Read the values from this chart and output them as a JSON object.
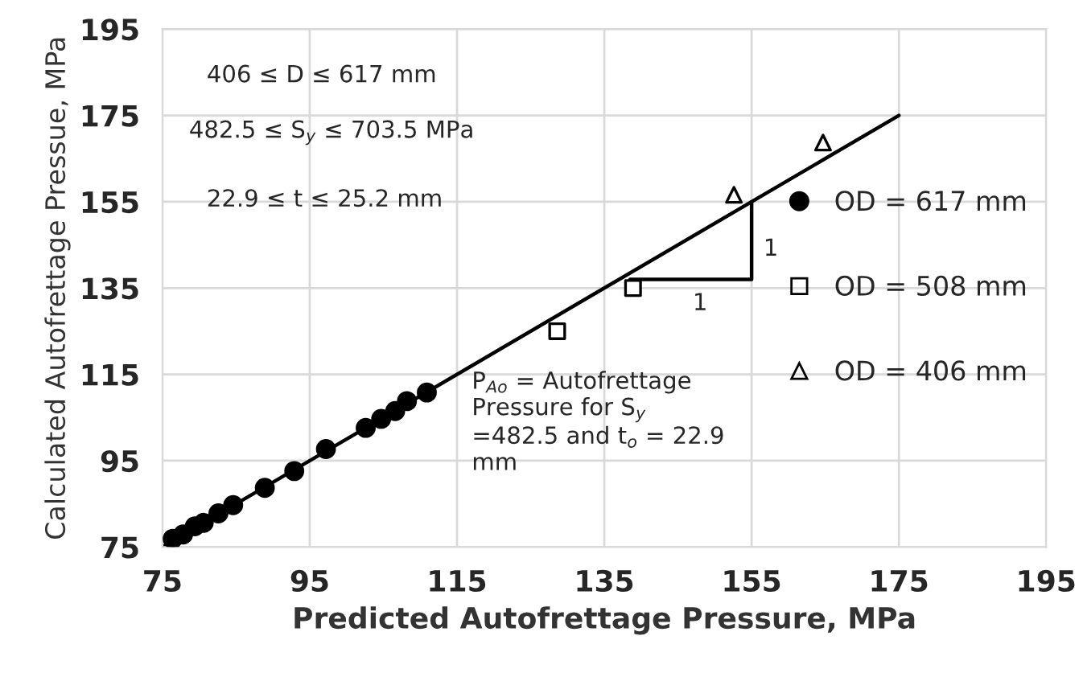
{
  "chart_data": {
    "type": "scatter",
    "xlabel": "Predicted Autofrettage Pressure, MPa",
    "ylabel": "Calculated Autofrettage Pressue, MPa",
    "xlim": [
      75,
      195
    ],
    "xticks": [
      75,
      95,
      115,
      135,
      155,
      175,
      195
    ],
    "ylim": [
      75,
      195
    ],
    "yticks": [
      75,
      95,
      115,
      135,
      155,
      175,
      195
    ],
    "grid": true,
    "legend": "right",
    "series": [
      {
        "name": "OD = 617 mm",
        "color": "#000000",
        "marker": "circle",
        "x": [
          76.4,
          77.8,
          79.4,
          80.6,
          82.6,
          84.6,
          88.9,
          92.9,
          97.2,
          102.6,
          104.7,
          106.6,
          108.2,
          110.9
        ],
        "values": [
          76.9,
          77.9,
          79.8,
          80.6,
          82.8,
          84.7,
          88.7,
          92.6,
          97.7,
          102.6,
          104.7,
          106.5,
          108.8,
          110.8
        ]
      },
      {
        "name": "OD = 508 mm",
        "color": "#000000",
        "marker": "square",
        "x": [
          128.6,
          138.9
        ],
        "values": [
          125.0,
          135.0
        ]
      },
      {
        "name": "OD = 406 mm",
        "color": "#000000",
        "marker": "triangle",
        "x": [
          152.6,
          164.7
        ],
        "values": [
          156.6,
          168.7
        ]
      },
      {
        "type": "line",
        "color": "#000000",
        "x": [
          75,
          175
        ],
        "values": [
          75,
          175
        ]
      }
    ],
    "annotations": [
      "406 ≤ D ≤ 617 mm",
      "482.5 ≤ S$_{y}$ ≤ 703.5 MPa",
      "22.9 ≤ t ≤ 25.2 mm",
      "1",
      "1",
      "P$_{Ao}$ = Autofrettage Pressure for S$_{y}$ =482.5 and t$_{o}$ = 22.9 mm"
    ]
  }
}
